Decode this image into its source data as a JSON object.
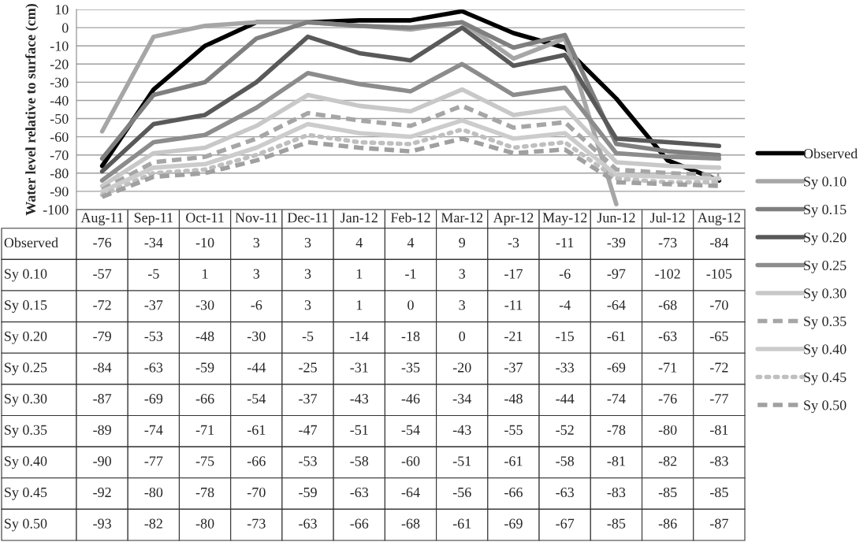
{
  "chart_data": {
    "type": "line",
    "ylabel": "Water level relative to surface (cm)",
    "categories": [
      "Aug-11",
      "Sep-11",
      "Oct-11",
      "Nov-11",
      "Dec-11",
      "Jan-12",
      "Feb-12",
      "Mar-12",
      "Apr-12",
      "May-12",
      "Jun-12",
      "Jul-12",
      "Aug-12"
    ],
    "series": [
      {
        "name": "Observed",
        "color": "#000000",
        "line_style": "solid",
        "values": [
          -76,
          -34,
          -10,
          3,
          3,
          4,
          4,
          9,
          -3,
          -11,
          -39,
          -73,
          -84
        ]
      },
      {
        "name": "Sy 0.10",
        "color": "#a6a6a6",
        "line_style": "solid",
        "values": [
          -57,
          -5,
          1,
          3,
          3,
          1,
          -1,
          3,
          -17,
          -6,
          -97,
          null,
          null
        ],
        "value_labels": [
          "-57",
          "-5",
          "1",
          "3",
          "3",
          "1",
          "-1",
          "3",
          "-17",
          "-6",
          "-97",
          "-102",
          "-105"
        ]
      },
      {
        "name": "Sy 0.15",
        "color": "#7f7f7f",
        "line_style": "solid",
        "values": [
          -72,
          -37,
          -30,
          -6,
          3,
          1,
          0,
          3,
          -11,
          -4,
          -64,
          -68,
          -70
        ]
      },
      {
        "name": "Sy 0.20",
        "color": "#595959",
        "line_style": "solid",
        "values": [
          -79,
          -53,
          -48,
          -30,
          -5,
          -14,
          -18,
          0,
          -21,
          -15,
          -61,
          -63,
          -65
        ]
      },
      {
        "name": "Sy 0.25",
        "color": "#8c8c8c",
        "line_style": "solid",
        "values": [
          -84,
          -63,
          -59,
          -44,
          -25,
          -31,
          -35,
          -20,
          -37,
          -33,
          -69,
          -71,
          -72
        ]
      },
      {
        "name": "Sy 0.30",
        "color": "#c8c8c8",
        "line_style": "solid",
        "values": [
          -87,
          -69,
          -66,
          -54,
          -37,
          -43,
          -46,
          -34,
          -48,
          -44,
          -74,
          -76,
          -77
        ]
      },
      {
        "name": "Sy 0.35",
        "color": "#a6a6a6",
        "line_style": "dashed",
        "values": [
          -89,
          -74,
          -71,
          -61,
          -47,
          -51,
          -54,
          -43,
          -55,
          -52,
          -78,
          -80,
          -81
        ]
      },
      {
        "name": "Sy 0.40",
        "color": "#cccccc",
        "line_style": "solid",
        "values": [
          -90,
          -77,
          -75,
          -66,
          -53,
          -58,
          -60,
          -51,
          -61,
          -58,
          -81,
          -82,
          -83
        ]
      },
      {
        "name": "Sy 0.45",
        "color": "#bfbfbf",
        "line_style": "dotted",
        "values": [
          -92,
          -80,
          -78,
          -70,
          -59,
          -63,
          -64,
          -56,
          -66,
          -63,
          -83,
          -85,
          -85
        ]
      },
      {
        "name": "Sy 0.50",
        "color": "#a0a0a0",
        "line_style": "dashed",
        "values": [
          -93,
          -82,
          -80,
          -73,
          -63,
          -66,
          -68,
          -61,
          -69,
          -67,
          -85,
          -86,
          -87
        ]
      }
    ],
    "ylim": [
      -100,
      10
    ],
    "yticks": [
      -100,
      -90,
      -80,
      -70,
      -60,
      -50,
      -40,
      -30,
      -20,
      -10,
      0,
      10
    ],
    "grid": "y",
    "legend": "right",
    "data_labels": true
  }
}
